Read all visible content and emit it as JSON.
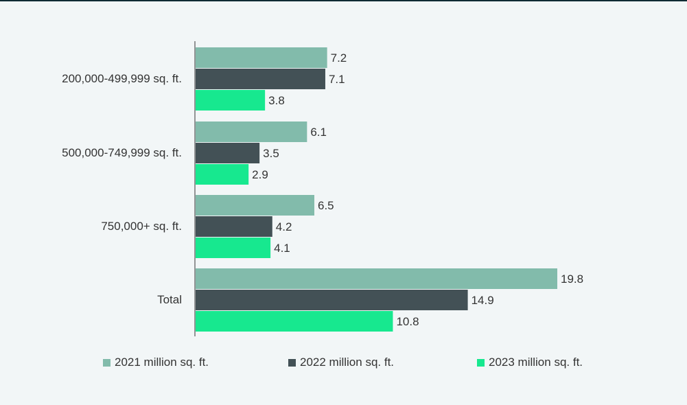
{
  "chart_data": {
    "type": "bar",
    "orientation": "horizontal",
    "categories": [
      "200,000-499,999 sq. ft.",
      "500,000-749,999 sq. ft.",
      "750,000+ sq. ft.",
      "Total"
    ],
    "series": [
      {
        "name": "2021 million sq. ft.",
        "color": "#82bbab",
        "values": [
          7.2,
          6.1,
          6.5,
          19.8
        ],
        "labels": [
          "7.2",
          "6.1",
          "6.5",
          "19.8"
        ]
      },
      {
        "name": "2022 million sq. ft.",
        "color": "#435156",
        "values": [
          7.1,
          3.5,
          4.2,
          14.9
        ],
        "labels": [
          "7.1",
          "3.5",
          "4.2",
          "14.9"
        ]
      },
      {
        "name": "2023 million sq. ft.",
        "color": "#17e88f",
        "values": [
          3.8,
          2.9,
          4.1,
          10.8
        ],
        "labels": [
          "3.8",
          "2.9",
          "4.1",
          "10.8"
        ]
      }
    ],
    "xlim": [
      0,
      21
    ],
    "title": "",
    "xlabel": "",
    "ylabel": "",
    "grid": false,
    "legend": "bottom"
  },
  "colors": {
    "background": "#f2f6f7",
    "text": "#333333",
    "axis": "#333333"
  }
}
